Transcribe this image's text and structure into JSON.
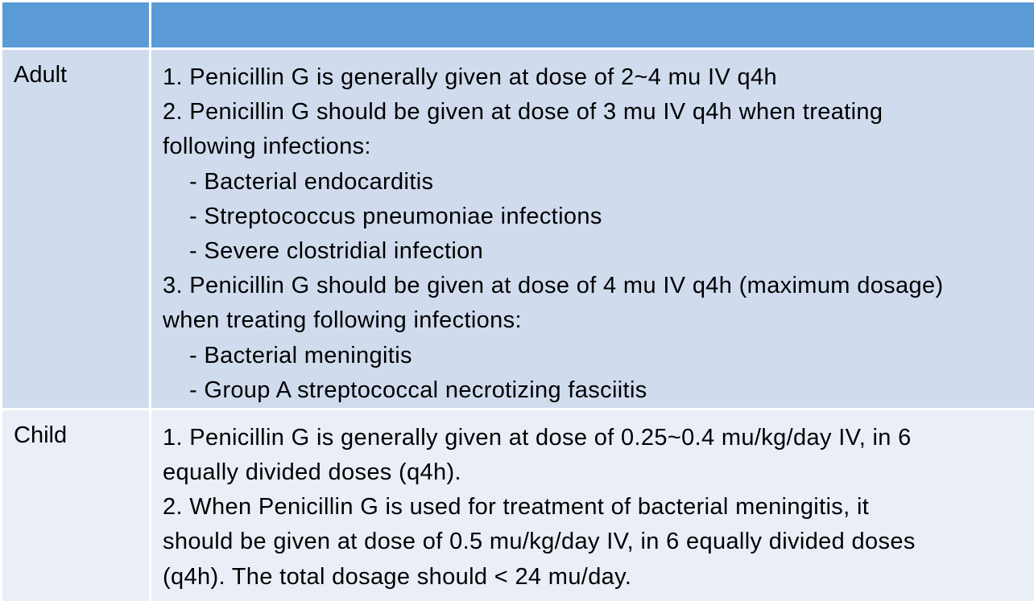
{
  "table": {
    "header": [
      "",
      ""
    ],
    "rows": [
      {
        "label": "Adult",
        "lines": [
          {
            "text": "1. Penicillin G is generally given at dose of 2~4 mu IV q4h",
            "indent": false
          },
          {
            "text": "2. Penicillin G should be given at dose of 3 mu IV q4h when treating",
            "indent": false
          },
          {
            "text": "following infections:",
            "indent": false
          },
          {
            "text": "- Bacterial endocarditis",
            "indent": true
          },
          {
            "text": "- Streptococcus pneumoniae infections",
            "indent": true
          },
          {
            "text": "- Severe clostridial infection",
            "indent": true
          },
          {
            "text": "3. Penicillin G should be given at dose of 4 mu IV q4h (maximum dosage)",
            "indent": false
          },
          {
            "text": "when treating following infections:",
            "indent": false
          },
          {
            "text": "- Bacterial meningitis",
            "indent": true
          },
          {
            "text": "- Group A streptococcal necrotizing fasciitis",
            "indent": true
          }
        ]
      },
      {
        "label": "Child",
        "lines": [
          {
            "text": "1. Penicillin G is generally given at dose of 0.25~0.4 mu/kg/day IV, in 6",
            "indent": false
          },
          {
            "text": "equally divided doses (q4h).",
            "indent": false
          },
          {
            "text": "2. When Penicillin G is used for treatment of bacterial meningitis, it",
            "indent": false
          },
          {
            "text": "should be given at dose of 0.5 mu/kg/day IV, in 6 equally divided doses",
            "indent": false
          },
          {
            "text": "(q4h). The total dosage should < 24 mu/day.",
            "indent": false
          }
        ]
      }
    ]
  },
  "colors": {
    "header": "#5b9bd5",
    "row_dark": "#d0dcee",
    "row_light": "#e9eef7"
  }
}
